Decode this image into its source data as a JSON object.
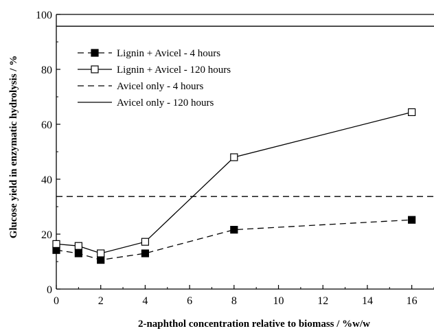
{
  "chart_data": {
    "type": "line",
    "title": "",
    "xlabel": "2-naphthol concentration relative to biomass / %w/w",
    "ylabel": "Glucose yield in enzymatic hydrolysis / %",
    "xlim": [
      0,
      17
    ],
    "ylim": [
      0,
      100
    ],
    "x_ticks": [
      0,
      2,
      4,
      6,
      8,
      10,
      12,
      14,
      16
    ],
    "y_ticks": [
      0,
      20,
      40,
      60,
      80,
      100
    ],
    "grid": false,
    "legend_position": "top-left",
    "series": [
      {
        "name": "Lignin + Avicel - 4 hours",
        "x": [
          0,
          1,
          2,
          4,
          8,
          16
        ],
        "y": [
          14.2,
          13.0,
          10.6,
          13.0,
          21.6,
          25.2
        ],
        "line_style": "dashed",
        "marker": "filled-square"
      },
      {
        "name": "Lignin + Avicel - 120 hours",
        "x": [
          0,
          1,
          2,
          4,
          8,
          16
        ],
        "y": [
          16.4,
          15.7,
          13.0,
          17.2,
          48.0,
          64.4
        ],
        "line_style": "solid",
        "marker": "open-square"
      },
      {
        "name": "Avicel only - 4 hours",
        "type": "horizontal-reference",
        "y_value": 33.7,
        "line_style": "dashed",
        "marker": "none"
      },
      {
        "name": "Avicel only - 120 hours",
        "type": "horizontal-reference",
        "y_value": 95.7,
        "line_style": "solid",
        "marker": "none"
      }
    ]
  }
}
